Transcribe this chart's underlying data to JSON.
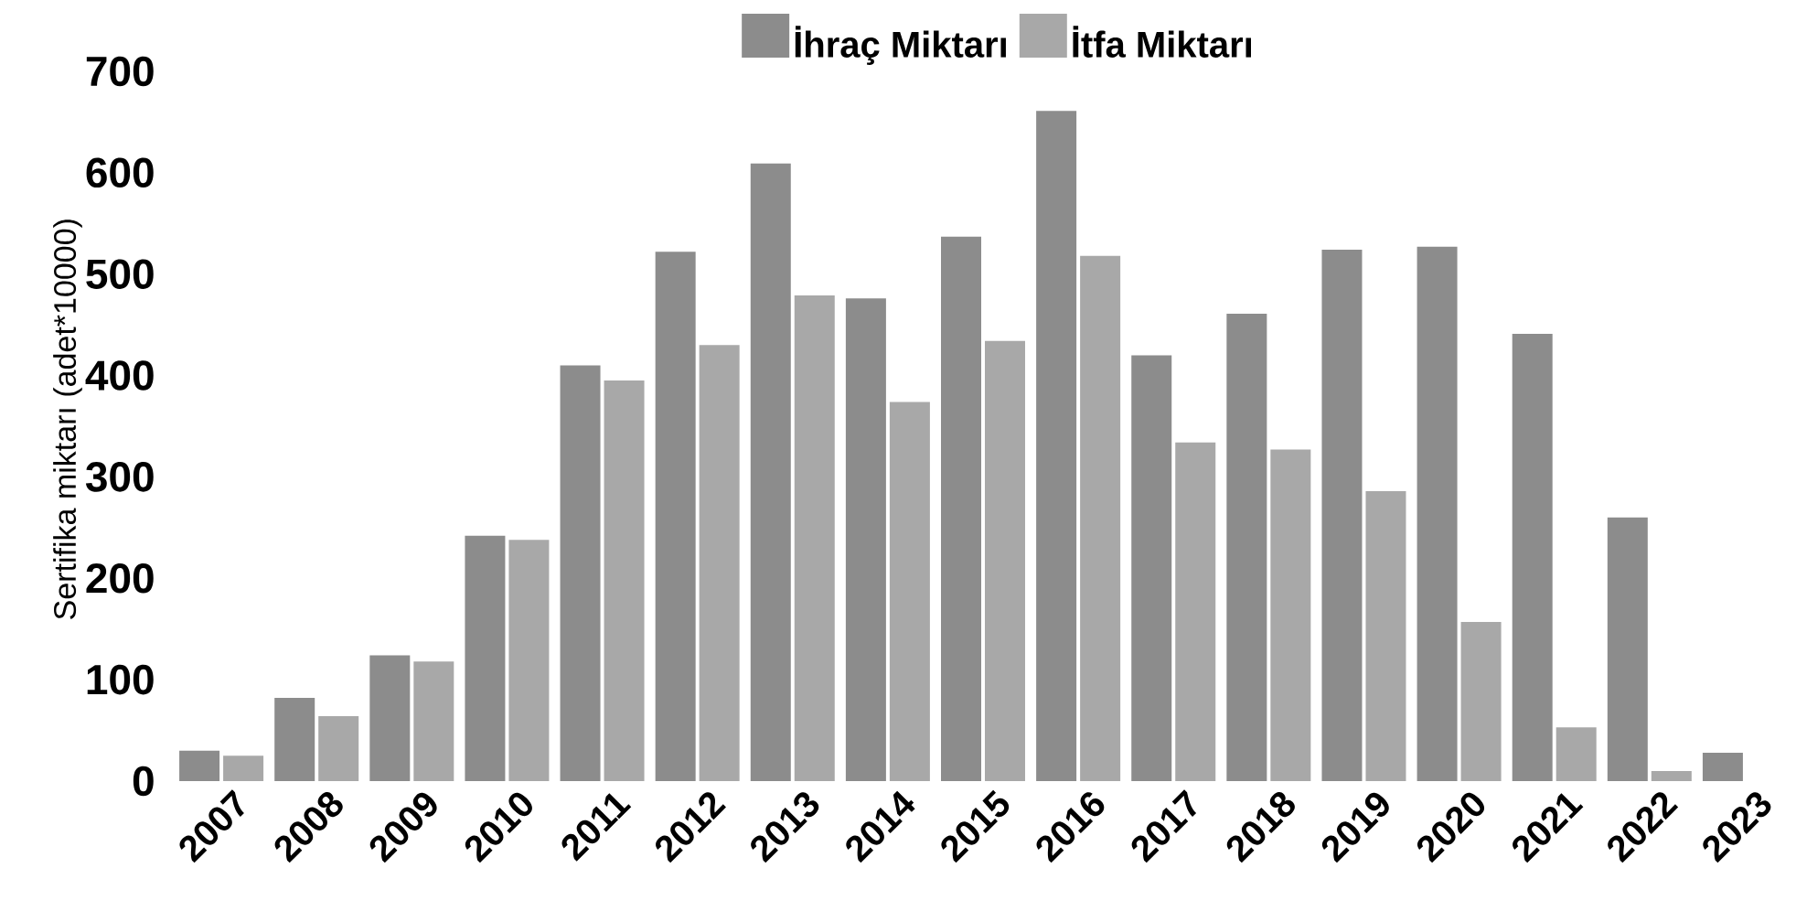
{
  "chart_data": {
    "type": "bar",
    "categories": [
      "2007",
      "2008",
      "2009",
      "2010",
      "2011",
      "2012",
      "2013",
      "2014",
      "2015",
      "2016",
      "2017",
      "2018",
      "2019",
      "2020",
      "2021",
      "2022",
      "2023"
    ],
    "series": [
      {
        "name": "İhraç Miktarı",
        "color": "#8c8c8c",
        "values": [
          30,
          82,
          124,
          242,
          410,
          522,
          609,
          476,
          537,
          661,
          420,
          461,
          524,
          527,
          441,
          260,
          28
        ]
      },
      {
        "name": "İtfa Miktarı",
        "color": "#a8a8a8",
        "values": [
          25,
          64,
          118,
          238,
          395,
          430,
          479,
          374,
          434,
          518,
          334,
          327,
          286,
          157,
          53,
          10,
          null
        ]
      }
    ],
    "ylabel": "Sertifika miktarı (adet*10000)",
    "ylim": [
      0,
      700
    ],
    "yticks": [
      0,
      100,
      200,
      300,
      400,
      500,
      600,
      700
    ],
    "legend": "top"
  }
}
